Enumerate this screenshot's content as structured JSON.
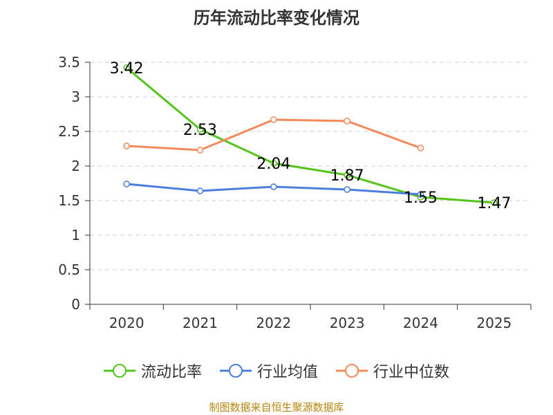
{
  "chart_data": {
    "type": "line",
    "title": "历年流动比率变化情况",
    "categories": [
      "2020",
      "2021",
      "2022",
      "2023",
      "2024",
      "2025"
    ],
    "y_ticks": [
      "0",
      "0.5",
      "1",
      "1.5",
      "2",
      "2.5",
      "3",
      "3.5"
    ],
    "ylim": [
      0,
      3.5
    ],
    "grid": true,
    "legend_position": "bottom",
    "series": [
      {
        "name": "流动比率",
        "color": "#52c41a",
        "values": [
          3.42,
          2.53,
          2.04,
          1.87,
          1.55,
          1.47
        ],
        "labels": [
          "3.42",
          "2.53",
          "2.04",
          "1.87",
          "1.55",
          "1.47"
        ]
      },
      {
        "name": "行业均值",
        "color": "#4a7fdc",
        "values": [
          1.74,
          1.64,
          1.7,
          1.66,
          1.59,
          null
        ]
      },
      {
        "name": "行业中位数",
        "color": "#f5895a",
        "values": [
          2.29,
          2.23,
          2.67,
          2.65,
          2.26,
          null
        ]
      }
    ]
  },
  "source_text": "制图数据来自恒生聚源数据库"
}
